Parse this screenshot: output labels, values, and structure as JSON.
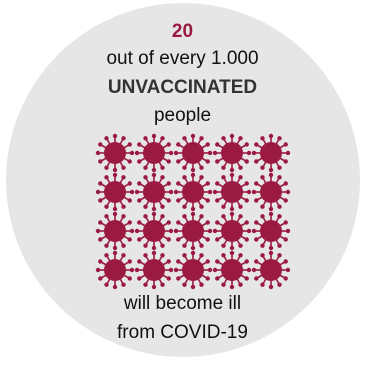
{
  "count": "20",
  "line1": "out of every 1.000",
  "line2": "UNVACCINATED",
  "line3": "people",
  "line4": "will become ill",
  "line5": "from COVID-19",
  "grid": {
    "rows": 4,
    "cols": 5,
    "icon": "virus-icon",
    "count": 20
  },
  "colors": {
    "accent": "#9b1a42",
    "circle": "#e6e6e6",
    "text": "#111111"
  }
}
